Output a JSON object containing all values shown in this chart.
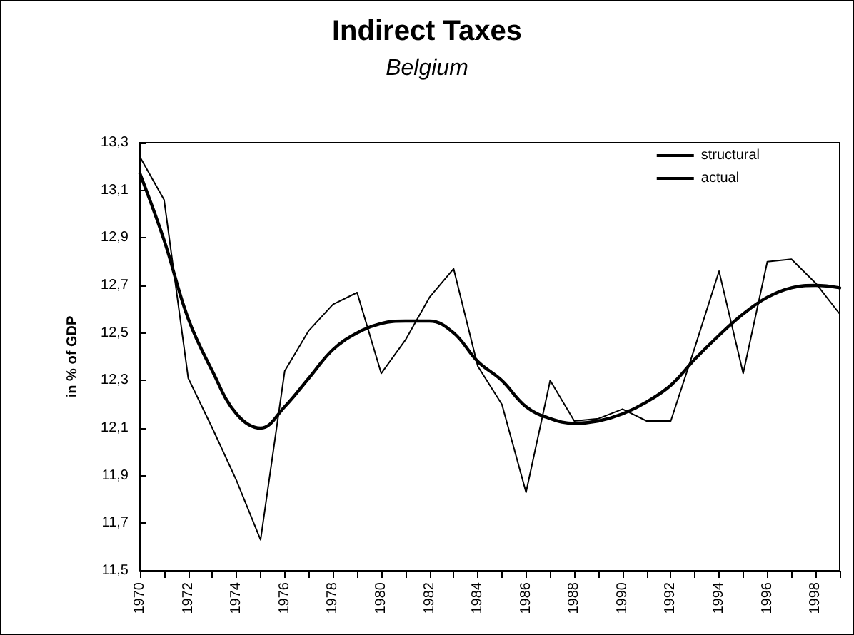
{
  "chart_data": {
    "type": "line",
    "title": "Indirect Taxes",
    "subtitle": "Belgium",
    "ylabel": "in % of GDP",
    "x": [
      1970,
      1971,
      1972,
      1973,
      1974,
      1975,
      1976,
      1977,
      1978,
      1979,
      1980,
      1981,
      1982,
      1983,
      1984,
      1985,
      1986,
      1987,
      1988,
      1989,
      1990,
      1991,
      1992,
      1993,
      1994,
      1995,
      1996,
      1997,
      1998,
      1999
    ],
    "series": [
      {
        "name": "structural",
        "color": "#000000",
        "values": [
          13.17,
          12.89,
          12.56,
          12.34,
          12.16,
          12.1,
          12.19,
          12.31,
          12.43,
          12.5,
          12.54,
          12.55,
          12.55,
          12.5,
          12.38,
          12.3,
          12.19,
          12.14,
          12.12,
          12.13,
          12.16,
          12.21,
          12.28,
          12.39,
          12.49,
          12.58,
          12.65,
          12.69,
          12.7,
          12.69
        ]
      },
      {
        "name": "actual",
        "color": "#000000",
        "values": [
          13.24,
          13.06,
          12.31,
          12.1,
          11.88,
          11.63,
          12.34,
          12.51,
          12.62,
          12.67,
          12.33,
          12.47,
          12.65,
          12.77,
          12.36,
          12.2,
          11.83,
          12.3,
          12.13,
          12.14,
          12.18,
          12.13,
          12.13,
          12.44,
          12.76,
          12.33,
          12.8,
          12.81,
          12.71,
          12.58
        ]
      }
    ],
    "xlim": [
      1970,
      1999
    ],
    "xticks": [
      1970,
      {
        "value": 1971,
        "label": null
      },
      1972,
      {
        "value": 1973,
        "label": null
      },
      1974,
      {
        "value": 1975,
        "label": null
      },
      1976,
      {
        "value": 1977,
        "label": null
      },
      1978,
      {
        "value": 1979,
        "label": null
      },
      1980,
      {
        "value": 1981,
        "label": null
      },
      1982,
      {
        "value": 1983,
        "label": null
      },
      1984,
      {
        "value": 1985,
        "label": null
      },
      1986,
      {
        "value": 1987,
        "label": null
      },
      1988,
      {
        "value": 1989,
        "label": null
      },
      1990,
      {
        "value": 1991,
        "label": null
      },
      1992,
      {
        "value": 1993,
        "label": null
      },
      1994,
      {
        "value": 1995,
        "label": null
      },
      1996,
      {
        "value": 1997,
        "label": null
      },
      1998,
      {
        "value": 1999,
        "label": null
      }
    ],
    "ylim": [
      11.5,
      13.3
    ],
    "yticks": [
      {
        "value": 11.5,
        "label": "11,5"
      },
      {
        "value": 11.7,
        "label": "11,7"
      },
      {
        "value": 11.9,
        "label": "11,9"
      },
      {
        "value": 12.1,
        "label": "12,1"
      },
      {
        "value": 12.3,
        "label": "12,3"
      },
      {
        "value": 12.5,
        "label": "12,5"
      },
      {
        "value": 12.7,
        "label": "12,7"
      },
      {
        "value": 12.9,
        "label": "12,9"
      },
      {
        "value": 13.1,
        "label": "13,1"
      },
      {
        "value": 13.3,
        "label": "13,3"
      }
    ],
    "grid": false,
    "legend": "top right",
    "marker": "none",
    "line_style": "solid"
  }
}
